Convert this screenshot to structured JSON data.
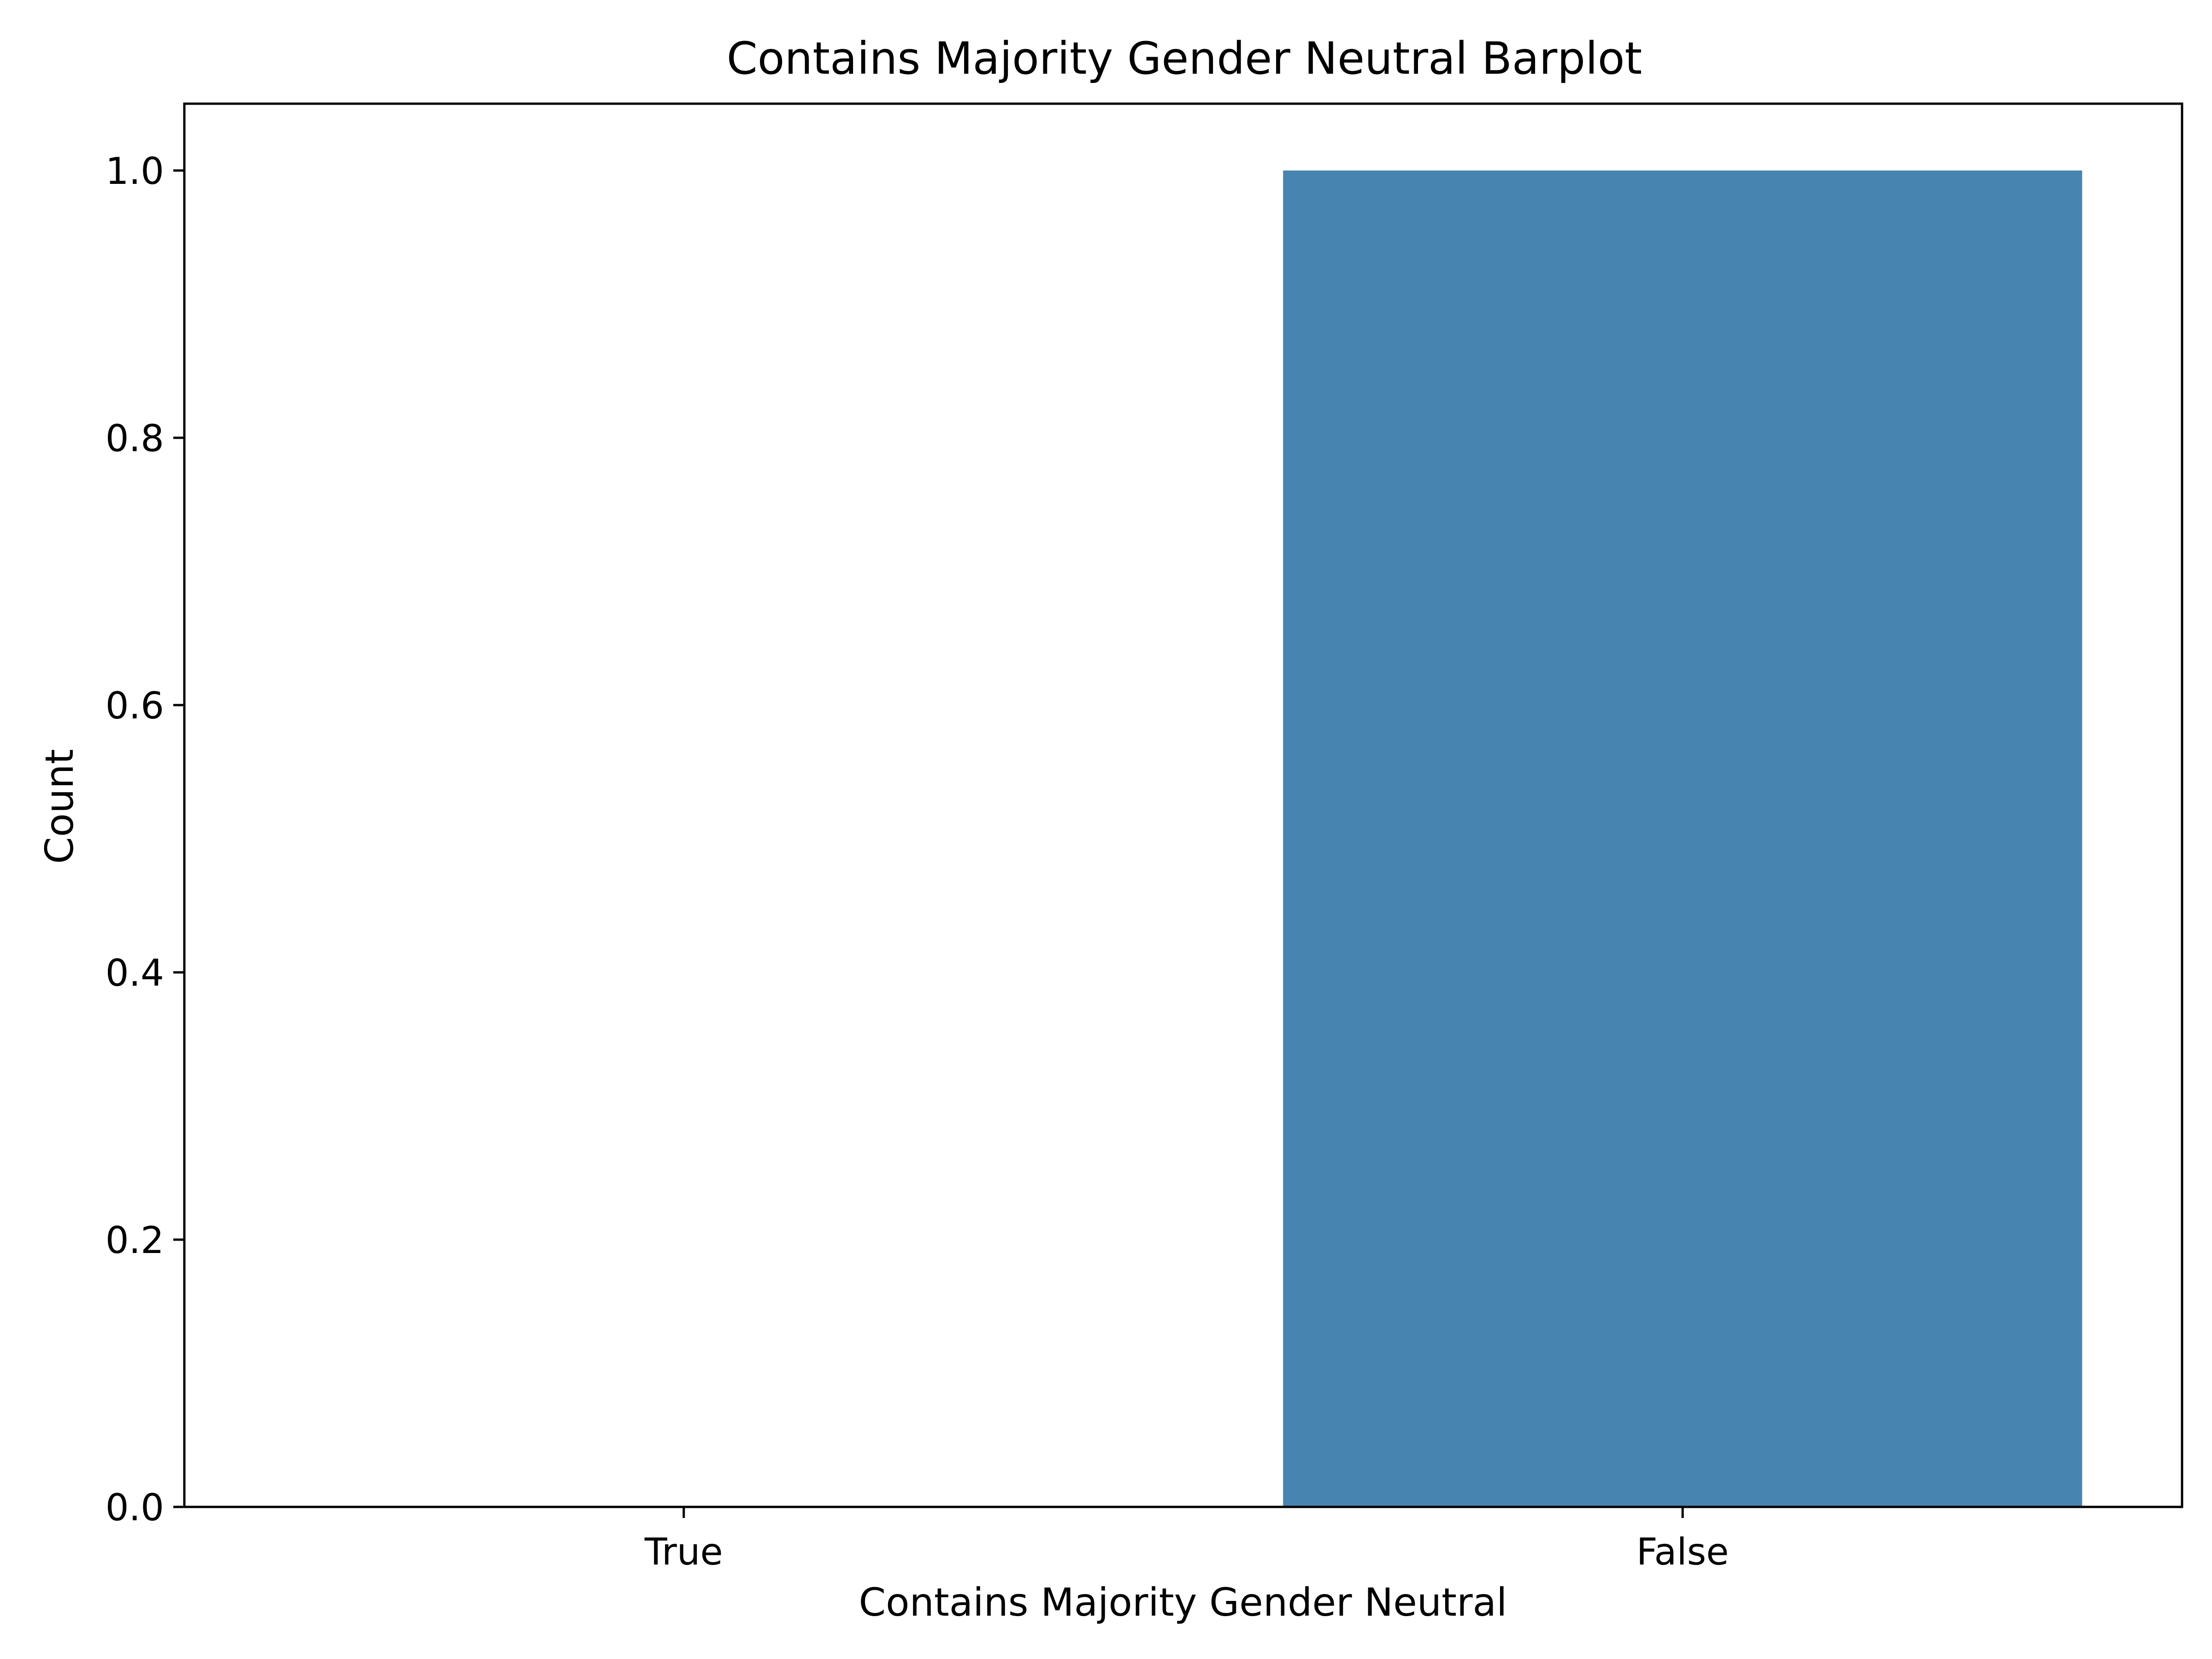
{
  "chart_data": {
    "type": "bar",
    "title": "Contains Majority Gender Neutral Barplot",
    "xlabel": "Contains Majority Gender Neutral",
    "ylabel": "Count",
    "categories": [
      "True",
      "False"
    ],
    "values": [
      0,
      1
    ],
    "ylim": [
      0,
      1.05
    ],
    "yticks": [
      0.0,
      0.2,
      0.4,
      0.6,
      0.8,
      1.0
    ],
    "ytick_labels": [
      "0.0",
      "0.2",
      "0.4",
      "0.6",
      "0.8",
      "1.0"
    ],
    "bar_color": "#4884b0",
    "grid": false,
    "legend": "none"
  }
}
